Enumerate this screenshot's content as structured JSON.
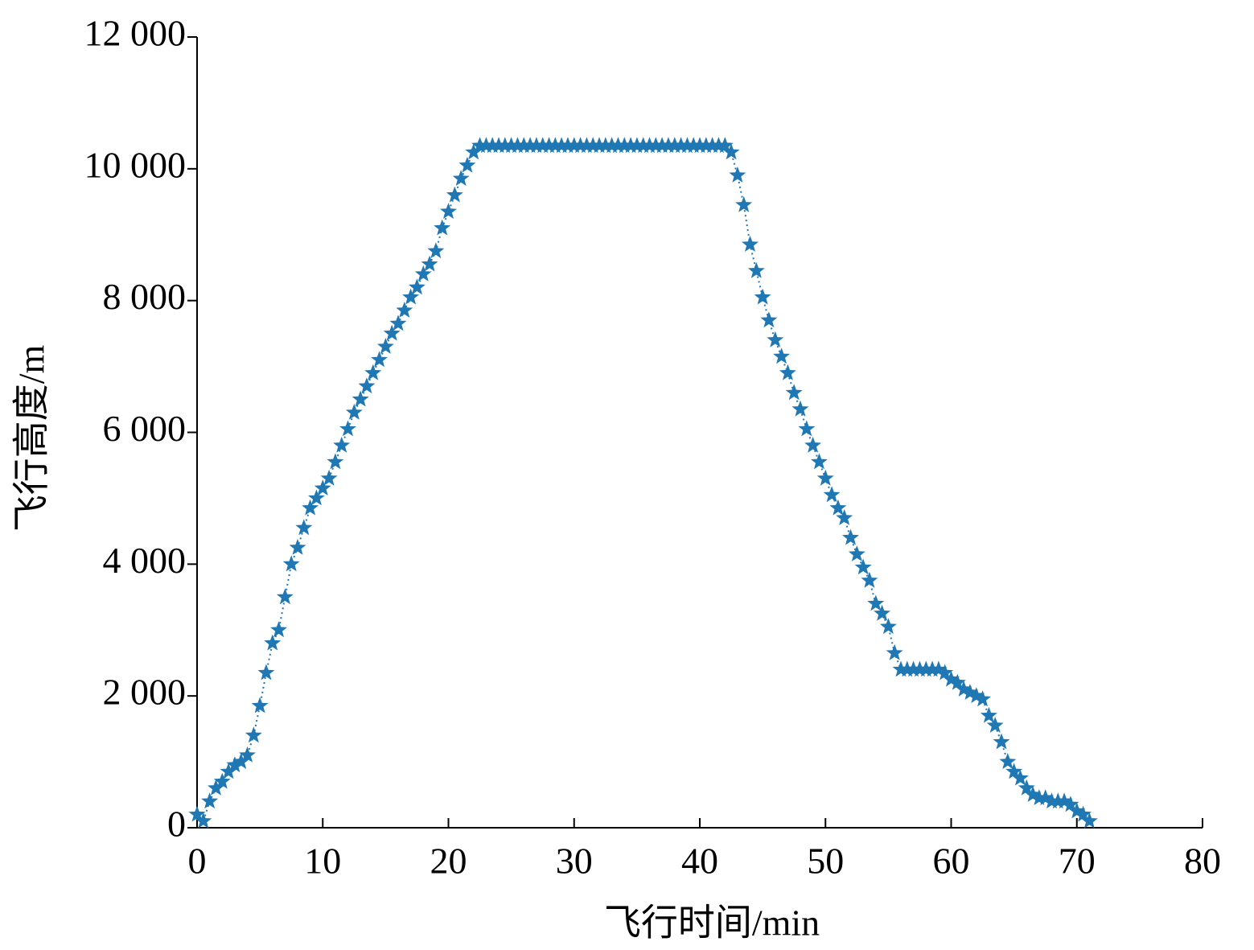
{
  "chart_data": {
    "type": "line",
    "marker": "star",
    "xlabel": "飞行时间/min",
    "ylabel": "飞行高度/m",
    "x": [
      0,
      0.5,
      1,
      1.5,
      2,
      2.5,
      3,
      3.5,
      4,
      4.5,
      5,
      5.5,
      6,
      6.5,
      7,
      7.5,
      8,
      8.5,
      9,
      9.5,
      10,
      10.5,
      11,
      11.5,
      12,
      12.5,
      13,
      13.5,
      14,
      14.5,
      15,
      15.5,
      16,
      16.5,
      17,
      17.5,
      18,
      18.5,
      19,
      19.5,
      20,
      20.5,
      21,
      21.5,
      22,
      22.5,
      23,
      23.5,
      24,
      24.5,
      25,
      25.5,
      26,
      26.5,
      27,
      27.5,
      28,
      28.5,
      29,
      29.5,
      30,
      30.5,
      31,
      31.5,
      32,
      32.5,
      33,
      33.5,
      34,
      34.5,
      35,
      35.5,
      36,
      36.5,
      37,
      37.5,
      38,
      38.5,
      39,
      39.5,
      40,
      40.5,
      41,
      41.5,
      42,
      42.5,
      43,
      43.5,
      44,
      44.5,
      45,
      45.5,
      46,
      46.5,
      47,
      47.5,
      48,
      48.5,
      49,
      49.5,
      50,
      50.5,
      51,
      51.5,
      52,
      52.5,
      53,
      53.5,
      54,
      54.5,
      55,
      55.5,
      56,
      56.5,
      57,
      57.5,
      58,
      58.5,
      59,
      59.5,
      60,
      60.5,
      61,
      61.5,
      62,
      62.5,
      63,
      63.5,
      64,
      64.5,
      65,
      65.5,
      66,
      66.5,
      67,
      67.5,
      68,
      68.5,
      69,
      69.5,
      70,
      70.5,
      71
    ],
    "series": [
      {
        "name": "飞行高度",
        "color": "#1f77b4",
        "values": [
          200,
          100,
          400,
          600,
          700,
          850,
          950,
          1000,
          1100,
          1400,
          1850,
          2350,
          2800,
          3000,
          3500,
          4000,
          4250,
          4550,
          4850,
          5000,
          5150,
          5300,
          5550,
          5800,
          6050,
          6300,
          6500,
          6700,
          6900,
          7100,
          7300,
          7500,
          7650,
          7850,
          8050,
          8200,
          8400,
          8550,
          8750,
          9100,
          9350,
          9600,
          9850,
          10050,
          10250,
          10350,
          10350,
          10350,
          10350,
          10350,
          10350,
          10350,
          10350,
          10350,
          10350,
          10350,
          10350,
          10350,
          10350,
          10350,
          10350,
          10350,
          10350,
          10350,
          10350,
          10350,
          10350,
          10350,
          10350,
          10350,
          10350,
          10350,
          10350,
          10350,
          10350,
          10350,
          10350,
          10350,
          10350,
          10350,
          10350,
          10350,
          10350,
          10350,
          10350,
          10250,
          9900,
          9450,
          8850,
          8450,
          8050,
          7700,
          7400,
          7150,
          6900,
          6600,
          6350,
          6050,
          5800,
          5550,
          5300,
          5050,
          4850,
          4700,
          4400,
          4150,
          3950,
          3750,
          3400,
          3250,
          3050,
          2650,
          2400,
          2400,
          2400,
          2400,
          2400,
          2400,
          2400,
          2350,
          2250,
          2200,
          2100,
          2050,
          2000,
          1950,
          1700,
          1550,
          1300,
          1000,
          850,
          750,
          600,
          500,
          450,
          450,
          400,
          400,
          400,
          350,
          250,
          200,
          100
        ]
      }
    ],
    "xlim": [
      0,
      80
    ],
    "xticks": [
      0,
      10,
      20,
      30,
      40,
      50,
      60,
      70,
      80
    ],
    "ylim": [
      0,
      12000
    ],
    "yticks": [
      0,
      {
        "value": 2000,
        "label": "2 000"
      },
      {
        "value": 4000,
        "label": "4 000"
      },
      {
        "value": 6000,
        "label": "6 000"
      },
      {
        "value": 8000,
        "label": "8 000"
      },
      {
        "value": 10000,
        "label": "10 000"
      },
      {
        "value": 12000,
        "label": "12 000"
      }
    ],
    "grid": false
  }
}
